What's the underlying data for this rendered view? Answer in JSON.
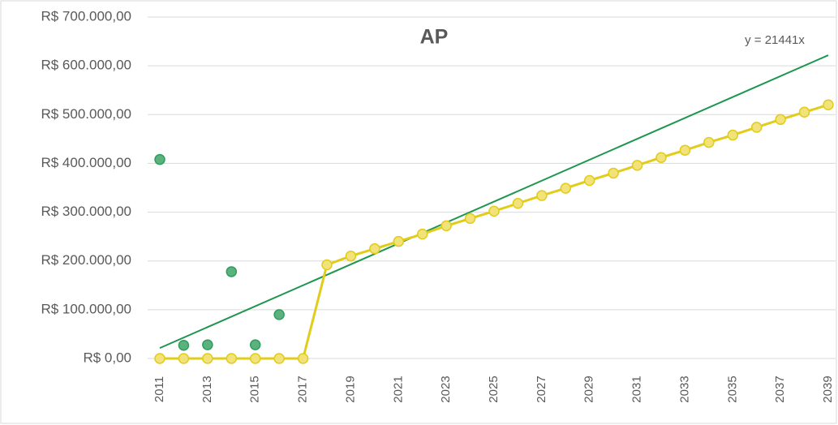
{
  "chart_data": {
    "type": "line",
    "title": "AP",
    "categories": [
      "2011",
      null,
      "2013",
      null,
      "2015",
      null,
      "2017",
      null,
      "2019",
      null,
      "2021",
      null,
      "2023",
      null,
      "2025",
      null,
      "2027",
      null,
      "2029",
      null,
      "2031",
      null,
      "2033",
      null,
      "2035",
      null,
      "2037",
      null,
      "2039"
    ],
    "series": [
      {
        "color": "#2e9e5b",
        "line": false,
        "values": [
          408000,
          27000,
          28000,
          178000,
          28000,
          90000,
          null,
          null,
          null,
          null,
          null,
          null,
          null,
          null,
          null,
          null,
          null,
          null,
          null,
          null,
          null,
          null,
          null,
          null,
          null,
          null,
          null,
          null,
          null
        ]
      },
      {
        "color": "#e2cc1a",
        "line": true,
        "values": [
          0,
          0,
          0,
          0,
          0,
          0,
          0,
          192000,
          210000,
          225000,
          240000,
          255000,
          272000,
          287000,
          302000,
          318000,
          334000,
          349000,
          365000,
          380000,
          396000,
          412000,
          427000,
          443000,
          458000,
          474000,
          490000,
          505000,
          520000
        ]
      }
    ],
    "trendline": {
      "label": "y = 21441x",
      "slope": 21441,
      "color": "#1e9650"
    },
    "ylim": [
      0,
      700000
    ],
    "yticks": [
      {
        "value": 0,
        "label": "R$ 0,00"
      },
      {
        "value": 100000,
        "label": "R$ 100.000,00"
      },
      {
        "value": 200000,
        "label": "R$ 200.000,00"
      },
      {
        "value": 300000,
        "label": "R$ 300.000,00"
      },
      {
        "value": 400000,
        "label": "R$ 400.000,00"
      },
      {
        "value": 500000,
        "label": "R$ 500.000,00"
      },
      {
        "value": 600000,
        "label": "R$ 600.000,00"
      },
      {
        "value": 700000,
        "label": "R$ 700.000,00"
      }
    ],
    "grid": true
  }
}
